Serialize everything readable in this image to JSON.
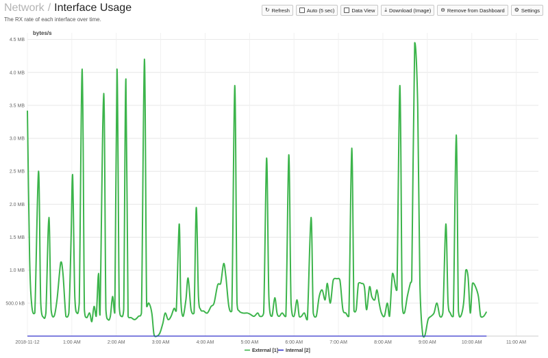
{
  "header": {
    "breadcrumb_parent": "Network",
    "breadcrumb_sep": "/",
    "title": "Interface Usage",
    "subtitle": "The RX rate of each interface over time."
  },
  "toolbar": {
    "refresh": {
      "label": "Refresh",
      "icon": "refresh-icon"
    },
    "auto": {
      "label": "Auto (5 sec)",
      "icon": "checkbox-icon"
    },
    "data_view": {
      "label": "Data View",
      "icon": "checkbox-icon"
    },
    "download": {
      "label": "Download (Image)",
      "icon": "download-icon"
    },
    "remove": {
      "label": "Remove from Dashboard",
      "icon": "minus-circle-icon"
    },
    "settings": {
      "label": "Settings",
      "icon": "gear-icon"
    }
  },
  "chart_data": {
    "type": "line",
    "ylabel": "bytes/s",
    "y_ticks": [
      "500.0 kB",
      "1.0 MB",
      "1.5 MB",
      "2.0 MB",
      "2.5 MB",
      "3.0 MB",
      "3.5 MB",
      "4.0 MB",
      "4.5 MB"
    ],
    "y_tick_values": [
      0.5,
      1.0,
      1.5,
      2.0,
      2.5,
      3.0,
      3.5,
      4.0,
      4.5
    ],
    "ylim": [
      0,
      4.6
    ],
    "y_unit": "MB",
    "x_ticks": [
      "2018-11-12",
      "1:00 AM",
      "2:00 AM",
      "3:00 AM",
      "4:00 AM",
      "5:00 AM",
      "6:00 AM",
      "7:00 AM",
      "8:00 AM",
      "9:00 AM",
      "10:00 AM",
      "11:00 AM"
    ],
    "x_tick_values": [
      0,
      60,
      120,
      180,
      240,
      300,
      360,
      420,
      480,
      540,
      600,
      660
    ],
    "xlim": [
      0,
      690
    ],
    "x_unit": "minutes",
    "grid": true,
    "legend_placement": "bottom-center",
    "series": [
      {
        "name": "External [1]",
        "color": "#3cb44b",
        "points": [
          [
            0,
            3.42
          ],
          [
            3,
            1.2
          ],
          [
            6,
            0.45
          ],
          [
            10,
            0.35
          ],
          [
            15,
            2.5
          ],
          [
            18,
            0.5
          ],
          [
            22,
            0.28
          ],
          [
            25,
            0.35
          ],
          [
            29,
            1.8
          ],
          [
            32,
            0.4
          ],
          [
            36,
            0.3
          ],
          [
            40,
            0.55
          ],
          [
            45,
            1.12
          ],
          [
            48,
            0.95
          ],
          [
            52,
            0.3
          ],
          [
            56,
            0.35
          ],
          [
            59,
            1.5
          ],
          [
            61,
            2.45
          ],
          [
            64,
            0.6
          ],
          [
            67,
            0.35
          ],
          [
            70,
            0.5
          ],
          [
            74,
            4.05
          ],
          [
            77,
            0.4
          ],
          [
            80,
            0.28
          ],
          [
            84,
            0.35
          ],
          [
            87,
            0.22
          ],
          [
            90,
            0.45
          ],
          [
            93,
            0.3
          ],
          [
            96,
            0.95
          ],
          [
            98,
            0.32
          ],
          [
            103,
            3.68
          ],
          [
            106,
            0.4
          ],
          [
            109,
            0.25
          ],
          [
            112,
            0.3
          ],
          [
            115,
            0.6
          ],
          [
            118,
            0.35
          ],
          [
            121,
            4.05
          ],
          [
            124,
            0.45
          ],
          [
            127,
            0.3
          ],
          [
            130,
            0.4
          ],
          [
            133,
            3.9
          ],
          [
            136,
            0.3
          ],
          [
            140,
            0.28
          ],
          [
            145,
            0.25
          ],
          [
            150,
            0.3
          ],
          [
            154,
            0.35
          ],
          [
            158,
            4.2
          ],
          [
            161,
            0.45
          ],
          [
            164,
            0.5
          ],
          [
            168,
            0.35
          ],
          [
            171,
            0.02
          ],
          [
            175,
            0.0
          ],
          [
            179,
            0.05
          ],
          [
            183,
            0.2
          ],
          [
            186,
            0.35
          ],
          [
            190,
            0.25
          ],
          [
            194,
            0.3
          ],
          [
            198,
            0.42
          ],
          [
            201,
            0.38
          ],
          [
            205,
            1.7
          ],
          [
            207,
            0.6
          ],
          [
            210,
            0.3
          ],
          [
            214,
            0.55
          ],
          [
            217,
            0.88
          ],
          [
            221,
            0.4
          ],
          [
            225,
            0.35
          ],
          [
            228,
            1.95
          ],
          [
            231,
            0.6
          ],
          [
            234,
            0.4
          ],
          [
            238,
            0.38
          ],
          [
            243,
            0.35
          ],
          [
            248,
            0.45
          ],
          [
            252,
            0.5
          ],
          [
            257,
            0.78
          ],
          [
            261,
            0.8
          ],
          [
            265,
            1.1
          ],
          [
            268,
            0.9
          ],
          [
            272,
            0.45
          ],
          [
            276,
            0.38
          ],
          [
            280,
            3.8
          ],
          [
            283,
            0.5
          ],
          [
            286,
            0.38
          ],
          [
            291,
            0.35
          ],
          [
            297,
            0.35
          ],
          [
            301,
            0.33
          ],
          [
            306,
            0.3
          ],
          [
            311,
            0.35
          ],
          [
            314,
            0.3
          ],
          [
            319,
            0.35
          ],
          [
            323,
            2.7
          ],
          [
            326,
            0.6
          ],
          [
            330,
            0.3
          ],
          [
            334,
            0.58
          ],
          [
            337,
            0.35
          ],
          [
            340,
            0.3
          ],
          [
            344,
            0.35
          ],
          [
            349,
            0.3
          ],
          [
            353,
            2.75
          ],
          [
            356,
            0.5
          ],
          [
            360,
            0.3
          ],
          [
            364,
            0.55
          ],
          [
            367,
            0.3
          ],
          [
            370,
            0.3
          ],
          [
            374,
            0.35
          ],
          [
            378,
            0.25
          ],
          [
            383,
            1.8
          ],
          [
            386,
            0.35
          ],
          [
            390,
            0.3
          ],
          [
            394,
            0.6
          ],
          [
            398,
            0.7
          ],
          [
            402,
            0.55
          ],
          [
            405,
            0.8
          ],
          [
            409,
            0.5
          ],
          [
            413,
            0.85
          ],
          [
            418,
            0.87
          ],
          [
            422,
            0.85
          ],
          [
            426,
            0.4
          ],
          [
            430,
            0.35
          ],
          [
            434,
            0.3
          ],
          [
            438,
            2.85
          ],
          [
            441,
            0.38
          ],
          [
            444,
            0.4
          ],
          [
            447,
            0.8
          ],
          [
            451,
            0.8
          ],
          [
            455,
            0.75
          ],
          [
            458,
            0.4
          ],
          [
            462,
            0.75
          ],
          [
            465,
            0.6
          ],
          [
            469,
            0.55
          ],
          [
            472,
            0.7
          ],
          [
            475,
            0.5
          ],
          [
            478,
            0.35
          ],
          [
            482,
            0.3
          ],
          [
            486,
            0.5
          ],
          [
            489,
            0.3
          ],
          [
            493,
            0.95
          ],
          [
            497,
            0.75
          ],
          [
            499,
            0.7
          ],
          [
            503,
            3.8
          ],
          [
            506,
            0.5
          ],
          [
            509,
            0.35
          ],
          [
            513,
            0.6
          ],
          [
            517,
            0.8
          ],
          [
            519,
            0.85
          ],
          [
            523,
            4.45
          ],
          [
            527,
            3.5
          ],
          [
            530,
            0.8
          ],
          [
            534,
            0.0
          ],
          [
            537,
            0.02
          ],
          [
            541,
            0.25
          ],
          [
            545,
            0.3
          ],
          [
            549,
            0.35
          ],
          [
            553,
            0.5
          ],
          [
            557,
            0.3
          ],
          [
            561,
            0.35
          ],
          [
            565,
            1.7
          ],
          [
            568,
            0.5
          ],
          [
            571,
            0.35
          ],
          [
            575,
            0.3
          ],
          [
            579,
            3.05
          ],
          [
            582,
            0.38
          ],
          [
            585,
            0.3
          ],
          [
            589,
            0.5
          ],
          [
            592,
            1.0
          ],
          [
            595,
            0.9
          ],
          [
            598,
            0.35
          ],
          [
            601,
            0.8
          ],
          [
            605,
            0.75
          ],
          [
            609,
            0.6
          ],
          [
            612,
            0.3
          ],
          [
            616,
            0.3
          ],
          [
            620,
            0.37
          ]
        ]
      },
      {
        "name": "Internal [2]",
        "color": "#3333cc",
        "points": [
          [
            0,
            0.0
          ],
          [
            620,
            0.0
          ]
        ]
      }
    ]
  }
}
